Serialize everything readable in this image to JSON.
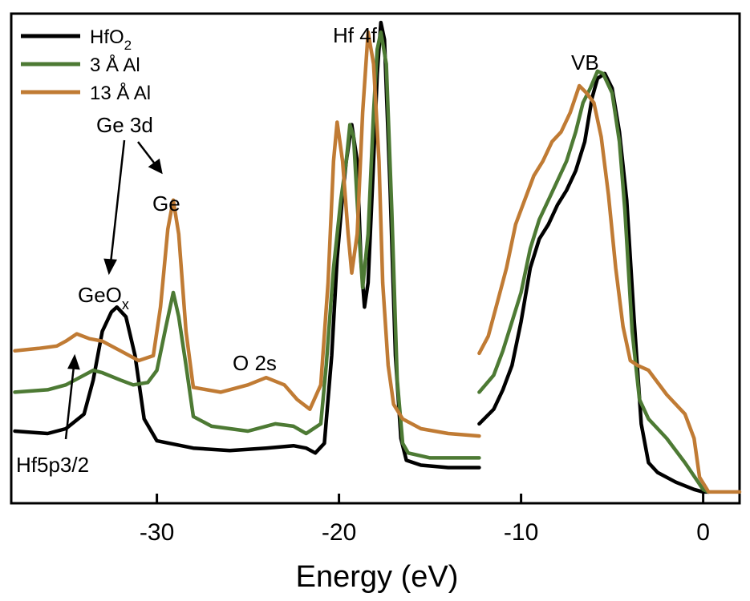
{
  "chart_data": {
    "type": "line",
    "xlabel": "Energy (eV)",
    "xlim": [
      -38,
      2
    ],
    "ylim": [
      0,
      1
    ],
    "x_ticks": [
      -30,
      -20,
      -10,
      0
    ],
    "x_tick_labels": [
      "-30",
      "-20",
      "-10",
      "0"
    ],
    "grid": false,
    "legend_position": "top-left",
    "y_axis_labels": false,
    "series": [
      {
        "name": "HfO2",
        "color": "#000000",
        "segments": [
          [
            [
              -37.8,
              0.145
            ],
            [
              -36,
              0.14
            ],
            [
              -35,
              0.15
            ],
            [
              -34,
              0.18
            ],
            [
              -33.5,
              0.25
            ],
            [
              -33,
              0.35
            ],
            [
              -32.5,
              0.39
            ],
            [
              -32.2,
              0.4
            ],
            [
              -31.7,
              0.38
            ],
            [
              -31.2,
              0.3
            ],
            [
              -30.7,
              0.17
            ],
            [
              -30,
              0.125
            ],
            [
              -28,
              0.11
            ],
            [
              -26,
              0.105
            ],
            [
              -24,
              0.11
            ],
            [
              -22.5,
              0.115
            ],
            [
              -21.8,
              0.11
            ],
            [
              -21.3,
              0.1
            ],
            [
              -20.8,
              0.12
            ],
            [
              -20.4,
              0.3
            ],
            [
              -20.1,
              0.5
            ],
            [
              -19.8,
              0.63
            ],
            [
              -19.6,
              0.7
            ],
            [
              -19.3,
              0.775
            ],
            [
              -19.0,
              0.7
            ],
            [
              -18.8,
              0.5
            ],
            [
              -18.6,
              0.4
            ],
            [
              -18.4,
              0.45
            ],
            [
              -18.1,
              0.7
            ],
            [
              -17.9,
              0.88
            ],
            [
              -17.7,
              0.985
            ],
            [
              -17.5,
              0.95
            ],
            [
              -17.2,
              0.65
            ],
            [
              -16.9,
              0.3
            ],
            [
              -16.6,
              0.13
            ],
            [
              -16.3,
              0.085
            ],
            [
              -15.5,
              0.075
            ],
            [
              -14,
              0.07
            ],
            [
              -12.3,
              0.07
            ]
          ],
          [
            [
              -12.3,
              0.16
            ],
            [
              -11.5,
              0.19
            ],
            [
              -11,
              0.23
            ],
            [
              -10.5,
              0.28
            ],
            [
              -10,
              0.37
            ],
            [
              -9.5,
              0.48
            ],
            [
              -9,
              0.54
            ],
            [
              -8.5,
              0.57
            ],
            [
              -8,
              0.61
            ],
            [
              -7.5,
              0.64
            ],
            [
              -7,
              0.68
            ],
            [
              -6.5,
              0.74
            ],
            [
              -6.1,
              0.83
            ],
            [
              -5.8,
              0.87
            ],
            [
              -5.4,
              0.88
            ],
            [
              -5,
              0.85
            ],
            [
              -4.6,
              0.76
            ],
            [
              -4.2,
              0.62
            ],
            [
              -3.8,
              0.38
            ],
            [
              -3.4,
              0.16
            ],
            [
              -3,
              0.08
            ],
            [
              -2.5,
              0.06
            ],
            [
              -1.5,
              0.04
            ],
            [
              -0.5,
              0.025
            ],
            [
              0,
              0.02
            ],
            [
              0.3,
              0.02
            ]
          ]
        ]
      },
      {
        "name": "3 Å Al",
        "color": "#4d7a34",
        "segments": [
          [
            [
              -37.8,
              0.225
            ],
            [
              -36,
              0.23
            ],
            [
              -35,
              0.24
            ],
            [
              -34,
              0.26
            ],
            [
              -33.5,
              0.27
            ],
            [
              -33,
              0.265
            ],
            [
              -32,
              0.25
            ],
            [
              -31.3,
              0.24
            ],
            [
              -30.5,
              0.245
            ],
            [
              -30,
              0.27
            ],
            [
              -29.5,
              0.36
            ],
            [
              -29.1,
              0.43
            ],
            [
              -28.8,
              0.38
            ],
            [
              -28.4,
              0.28
            ],
            [
              -28,
              0.175
            ],
            [
              -27,
              0.155
            ],
            [
              -25,
              0.145
            ],
            [
              -23.5,
              0.16
            ],
            [
              -22.5,
              0.155
            ],
            [
              -21.8,
              0.14
            ],
            [
              -21,
              0.16
            ],
            [
              -20.7,
              0.28
            ],
            [
              -20.3,
              0.48
            ],
            [
              -19.9,
              0.62
            ],
            [
              -19.6,
              0.7
            ],
            [
              -19.4,
              0.775
            ],
            [
              -19.2,
              0.75
            ],
            [
              -18.9,
              0.55
            ],
            [
              -18.7,
              0.44
            ],
            [
              -18.4,
              0.55
            ],
            [
              -18.1,
              0.8
            ],
            [
              -17.9,
              0.93
            ],
            [
              -17.7,
              0.965
            ],
            [
              -17.4,
              0.9
            ],
            [
              -17.1,
              0.6
            ],
            [
              -16.8,
              0.25
            ],
            [
              -16.5,
              0.12
            ],
            [
              -16.2,
              0.1
            ],
            [
              -15,
              0.09
            ],
            [
              -12.3,
              0.09
            ]
          ],
          [
            [
              -12.3,
              0.225
            ],
            [
              -11.5,
              0.26
            ],
            [
              -11,
              0.31
            ],
            [
              -10.5,
              0.37
            ],
            [
              -10,
              0.43
            ],
            [
              -9.5,
              0.52
            ],
            [
              -9,
              0.58
            ],
            [
              -8.5,
              0.62
            ],
            [
              -8,
              0.66
            ],
            [
              -7.5,
              0.7
            ],
            [
              -7,
              0.76
            ],
            [
              -6.6,
              0.82
            ],
            [
              -6.2,
              0.85
            ],
            [
              -5.8,
              0.885
            ],
            [
              -5.5,
              0.88
            ],
            [
              -5,
              0.84
            ],
            [
              -4.6,
              0.74
            ],
            [
              -4.3,
              0.6
            ],
            [
              -3.9,
              0.35
            ],
            [
              -3.5,
              0.21
            ],
            [
              -3,
              0.17
            ],
            [
              -2,
              0.13
            ],
            [
              -1,
              0.08
            ],
            [
              0,
              0.025
            ],
            [
              0.3,
              0.02
            ]
          ]
        ]
      },
      {
        "name": "13 Å Al",
        "color": "#c07b34",
        "segments": [
          [
            [
              -37.8,
              0.31
            ],
            [
              -36.5,
              0.315
            ],
            [
              -35.5,
              0.32
            ],
            [
              -35,
              0.33
            ],
            [
              -34.4,
              0.345
            ],
            [
              -33.7,
              0.335
            ],
            [
              -33,
              0.33
            ],
            [
              -32,
              0.31
            ],
            [
              -31,
              0.29
            ],
            [
              -30.2,
              0.3
            ],
            [
              -29.8,
              0.4
            ],
            [
              -29.4,
              0.56
            ],
            [
              -29.1,
              0.62
            ],
            [
              -28.8,
              0.55
            ],
            [
              -28.4,
              0.35
            ],
            [
              -28,
              0.235
            ],
            [
              -26.5,
              0.225
            ],
            [
              -25,
              0.24
            ],
            [
              -24,
              0.255
            ],
            [
              -23,
              0.24
            ],
            [
              -22.3,
              0.21
            ],
            [
              -21.6,
              0.19
            ],
            [
              -21,
              0.24
            ],
            [
              -20.6,
              0.45
            ],
            [
              -20.3,
              0.7
            ],
            [
              -20.1,
              0.78
            ],
            [
              -19.8,
              0.7
            ],
            [
              -19.5,
              0.55
            ],
            [
              -19.3,
              0.47
            ],
            [
              -19.0,
              0.55
            ],
            [
              -18.7,
              0.8
            ],
            [
              -18.4,
              0.965
            ],
            [
              -18.1,
              0.9
            ],
            [
              -17.8,
              0.7
            ],
            [
              -17.6,
              0.45
            ],
            [
              -17.3,
              0.28
            ],
            [
              -17,
              0.2
            ],
            [
              -16.5,
              0.17
            ],
            [
              -15.5,
              0.15
            ],
            [
              -14,
              0.14
            ],
            [
              -12.3,
              0.135
            ]
          ],
          [
            [
              -12.3,
              0.305
            ],
            [
              -11.8,
              0.34
            ],
            [
              -11.3,
              0.41
            ],
            [
              -10.8,
              0.48
            ],
            [
              -10.3,
              0.57
            ],
            [
              -9.8,
              0.62
            ],
            [
              -9.3,
              0.67
            ],
            [
              -8.8,
              0.7
            ],
            [
              -8.3,
              0.74
            ],
            [
              -7.8,
              0.76
            ],
            [
              -7.3,
              0.8
            ],
            [
              -6.8,
              0.855
            ],
            [
              -6.4,
              0.84
            ],
            [
              -6,
              0.82
            ],
            [
              -5.6,
              0.75
            ],
            [
              -5.2,
              0.63
            ],
            [
              -4.8,
              0.48
            ],
            [
              -4.4,
              0.36
            ],
            [
              -4,
              0.29
            ],
            [
              -3.6,
              0.28
            ],
            [
              -3,
              0.27
            ],
            [
              -2,
              0.22
            ],
            [
              -1,
              0.18
            ],
            [
              -0.5,
              0.13
            ],
            [
              -0.2,
              0.05
            ],
            [
              0.3,
              0.02
            ],
            [
              2,
              0.02
            ]
          ]
        ]
      }
    ],
    "annotations": {
      "hf4f": "Hf 4f",
      "vb": "VB",
      "ge3d": "Ge 3d",
      "ge": "Ge",
      "geox_base": "GeO",
      "geox_sub": "x",
      "o2s": "O 2s",
      "hf5p": "Hf5p3/2"
    }
  }
}
